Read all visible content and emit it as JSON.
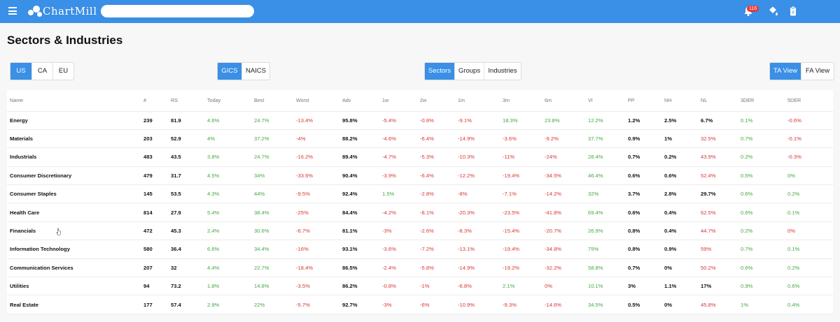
{
  "header": {
    "logo_text": "ChartMill",
    "search_placeholder": "",
    "notification_count": "116",
    "accent": "#3a8fe6"
  },
  "page": {
    "title": "Sectors & Industries"
  },
  "filters": {
    "region": [
      {
        "label": "US",
        "active": true
      },
      {
        "label": "CA",
        "active": false
      },
      {
        "label": "EU",
        "active": false
      }
    ],
    "classification": [
      {
        "label": "GICS",
        "active": true
      },
      {
        "label": "NAICS",
        "active": false
      }
    ],
    "level": [
      {
        "label": "Sectors",
        "active": true
      },
      {
        "label": "Groups",
        "active": false
      },
      {
        "label": "Industries",
        "active": false
      }
    ],
    "view": [
      {
        "label": "TA View",
        "active": true
      },
      {
        "label": "FA View",
        "active": false
      }
    ]
  },
  "table": {
    "columns": [
      "Name",
      "#",
      "RS",
      "Today",
      "Best",
      "Worst",
      "Adv",
      "1w",
      "2w",
      "1m",
      "3m",
      "6m",
      "VI",
      "PP",
      "NH",
      "NL",
      "3DER",
      "5DER"
    ],
    "colors": {
      "positive": "#43a843",
      "negative": "#d93636"
    },
    "rows": [
      [
        "Energy",
        "239",
        "81.9",
        "4.6%",
        "24.7%",
        "-13.4%",
        "95.8%",
        "-5.4%",
        "-0.8%",
        "-9.1%",
        "18.3%",
        "23.8%",
        "12.2%",
        "1.2%",
        "2.5%",
        "6.7%",
        "0.1%",
        "-0.6%"
      ],
      [
        "Materials",
        "203",
        "52.9",
        "4%",
        "37.2%",
        "-4%",
        "88.2%",
        "-4.6%",
        "-6.4%",
        "-14.9%",
        "-3.6%",
        "-9.2%",
        "37.7%",
        "0.9%",
        "1%",
        "32.5%",
        "0.7%",
        "-0.1%"
      ],
      [
        "Industrials",
        "483",
        "43.5",
        "3.8%",
        "24.7%",
        "-16.2%",
        "89.4%",
        "-4.7%",
        "-5.3%",
        "-10.3%",
        "-11%",
        "-24%",
        "28.4%",
        "0.7%",
        "0.2%",
        "43.9%",
        "0.2%",
        "-0.3%"
      ],
      [
        "Consumer Discretionary",
        "479",
        "31.7",
        "4.5%",
        "34%",
        "-33.6%",
        "90.4%",
        "-3.9%",
        "-6.4%",
        "-12.2%",
        "-19.4%",
        "-34.5%",
        "46.4%",
        "0.6%",
        "0.6%",
        "52.4%",
        "0.5%",
        "0%"
      ],
      [
        "Consumer Staples",
        "145",
        "53.5",
        "4.3%",
        "44%",
        "-9.5%",
        "92.4%",
        "1.5%",
        "-2.8%",
        "-8%",
        "-7.1%",
        "-14.2%",
        "32%",
        "3.7%",
        "2.8%",
        "29.7%",
        "0.6%",
        "0.2%"
      ],
      [
        "Health Care",
        "814",
        "27.9",
        "5.4%",
        "38.4%",
        "-25%",
        "84.4%",
        "-4.2%",
        "-8.1%",
        "-20.3%",
        "-23.5%",
        "-41.8%",
        "69.4%",
        "0.6%",
        "0.4%",
        "62.5%",
        "0.6%",
        "0.1%"
      ],
      [
        "Financials",
        "472",
        "45.3",
        "2.4%",
        "30.6%",
        "-6.7%",
        "81.1%",
        "-3%",
        "-2.6%",
        "-8.3%",
        "-15.4%",
        "-20.7%",
        "26.9%",
        "0.8%",
        "0.4%",
        "44.7%",
        "0.2%",
        "0%"
      ],
      [
        "Information Technology",
        "580",
        "36.4",
        "6.6%",
        "34.4%",
        "-16%",
        "93.1%",
        "-3.6%",
        "-7.2%",
        "-13.1%",
        "-19.4%",
        "-34.8%",
        "75%",
        "0.8%",
        "0.9%",
        "59%",
        "0.7%",
        "0.1%"
      ],
      [
        "Communication Services",
        "207",
        "32",
        "4.4%",
        "22.7%",
        "-18.4%",
        "86.5%",
        "-2.4%",
        "-5.8%",
        "-14.9%",
        "-19.2%",
        "-32.2%",
        "58.8%",
        "0.7%",
        "0%",
        "50.2%",
        "0.6%",
        "0.2%"
      ],
      [
        "Utilities",
        "94",
        "73.2",
        "1.8%",
        "14.8%",
        "-3.5%",
        "86.2%",
        "-0.8%",
        "-1%",
        "-6.8%",
        "2.1%",
        "0%",
        "10.1%",
        "3%",
        "1.1%",
        "17%",
        "0.9%",
        "0.6%"
      ],
      [
        "Real Estate",
        "177",
        "57.4",
        "2.9%",
        "22%",
        "-5.7%",
        "92.7%",
        "-3%",
        "-6%",
        "-10.9%",
        "-9.3%",
        "-14.6%",
        "34.5%",
        "0.5%",
        "0%",
        "45.8%",
        "1%",
        "0.4%"
      ]
    ],
    "cell_colors": [
      [
        "",
        "",
        "",
        "pos",
        "pos",
        "neg",
        "",
        "neg",
        "neg",
        "neg",
        "pos",
        "pos",
        "pos",
        "",
        "",
        "",
        "pos",
        "neg"
      ],
      [
        "",
        "",
        "",
        "pos",
        "pos",
        "neg",
        "",
        "neg",
        "neg",
        "neg",
        "neg",
        "neg",
        "pos",
        "",
        "",
        "neg",
        "pos",
        "neg"
      ],
      [
        "",
        "",
        "",
        "pos",
        "pos",
        "neg",
        "",
        "neg",
        "neg",
        "neg",
        "neg",
        "neg",
        "pos",
        "",
        "",
        "neg",
        "pos",
        "neg"
      ],
      [
        "",
        "",
        "",
        "pos",
        "pos",
        "neg",
        "",
        "neg",
        "neg",
        "neg",
        "neg",
        "neg",
        "pos",
        "",
        "",
        "neg",
        "pos",
        "pos"
      ],
      [
        "",
        "",
        "",
        "pos",
        "pos",
        "neg",
        "",
        "pos",
        "neg",
        "neg",
        "neg",
        "neg",
        "pos",
        "",
        "",
        "",
        "pos",
        "pos"
      ],
      [
        "",
        "",
        "",
        "pos",
        "pos",
        "neg",
        "",
        "neg",
        "neg",
        "neg",
        "neg",
        "neg",
        "pos",
        "",
        "",
        "neg",
        "pos",
        "pos"
      ],
      [
        "",
        "",
        "",
        "pos",
        "pos",
        "neg",
        "",
        "neg",
        "neg",
        "neg",
        "neg",
        "neg",
        "pos",
        "",
        "",
        "neg",
        "pos",
        "neg"
      ],
      [
        "",
        "",
        "",
        "pos",
        "pos",
        "neg",
        "",
        "neg",
        "neg",
        "neg",
        "neg",
        "neg",
        "pos",
        "",
        "",
        "neg",
        "pos",
        "pos"
      ],
      [
        "",
        "",
        "",
        "pos",
        "pos",
        "neg",
        "",
        "neg",
        "neg",
        "neg",
        "neg",
        "neg",
        "pos",
        "",
        "",
        "neg",
        "pos",
        "pos"
      ],
      [
        "",
        "",
        "",
        "pos",
        "pos",
        "neg",
        "",
        "neg",
        "neg",
        "neg",
        "pos",
        "neg",
        "pos",
        "",
        "",
        "",
        "pos",
        "pos"
      ],
      [
        "",
        "",
        "",
        "pos",
        "pos",
        "neg",
        "",
        "neg",
        "neg",
        "neg",
        "neg",
        "neg",
        "pos",
        "",
        "",
        "neg",
        "pos",
        "pos"
      ]
    ]
  }
}
